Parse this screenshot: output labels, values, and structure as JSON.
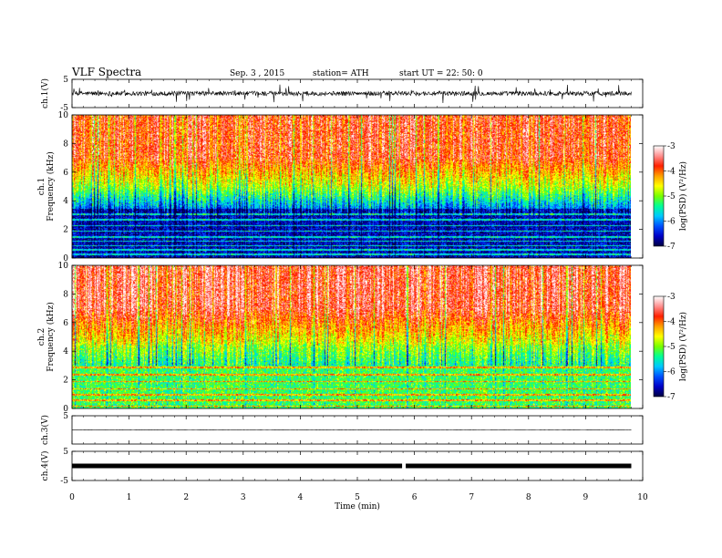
{
  "header": {
    "title": "VLF  Spectra",
    "date": "Sep. 3  , 2015",
    "station": "station= ATH",
    "start": "start  UT  =    22: 50: 0"
  },
  "colors": {
    "spectrogram_scale": [
      "#000040",
      "#0000c8",
      "#0050ff",
      "#00c8ff",
      "#00ff96",
      "#78ff00",
      "#ffff00",
      "#ffa000",
      "#ff2000",
      "#ff9090",
      "#ffffff"
    ]
  },
  "chart_data": [
    {
      "type": "line",
      "name": "ch1-waveform",
      "ylabel": "ch.1(V)",
      "ylim": [
        -5,
        5
      ],
      "yticks": [
        "5",
        "-5"
      ],
      "baseline": 0,
      "xlim": [
        0,
        10
      ]
    },
    {
      "type": "heatmap",
      "name": "ch1-spectrogram",
      "ylabel_channel": "ch.1",
      "ylabel": "Frequency  (kHz)",
      "ylim": [
        0,
        10
      ],
      "yticks": [
        "0",
        "2",
        "4",
        "6",
        "8",
        "10"
      ],
      "xlim": [
        0,
        10
      ],
      "data_end_min": 9.8,
      "colorbar": {
        "label": "log(PSD) (V²/Hz)",
        "range": [
          -7,
          -3
        ],
        "ticks": [
          "-3",
          "-4",
          "-5",
          "-6",
          "-7"
        ]
      }
    },
    {
      "type": "heatmap",
      "name": "ch2-spectrogram",
      "ylabel_channel": "ch.2",
      "ylabel": "Frequency  (kHz)",
      "ylim": [
        0,
        10
      ],
      "yticks": [
        "0",
        "2",
        "4",
        "6",
        "8",
        "10"
      ],
      "xlim": [
        0,
        10
      ],
      "data_end_min": 9.8,
      "colorbar": {
        "label": "log(PSD) (V²/Hz)",
        "range": [
          -7,
          -3
        ],
        "ticks": [
          "-3",
          "-4",
          "-5",
          "-6",
          "-7"
        ]
      }
    },
    {
      "type": "line",
      "name": "ch3-waveform",
      "ylabel": "ch.3(V)",
      "ylim": [
        -5,
        5
      ],
      "yticks": [
        "5"
      ],
      "baseline": 0,
      "xlim": [
        0,
        10
      ]
    },
    {
      "type": "line",
      "name": "ch4-waveform",
      "ylabel": "ch.4(V)",
      "ylim": [
        -5,
        5
      ],
      "yticks": [
        "5",
        "-5"
      ],
      "baseline": 0,
      "xlim": [
        0,
        10
      ],
      "gap_at_min": 5.8
    }
  ],
  "xaxis": {
    "label": "Time  (min)",
    "range": [
      0,
      10
    ],
    "ticks": [
      "0",
      "1",
      "2",
      "3",
      "4",
      "5",
      "6",
      "7",
      "8",
      "9",
      "10"
    ]
  }
}
